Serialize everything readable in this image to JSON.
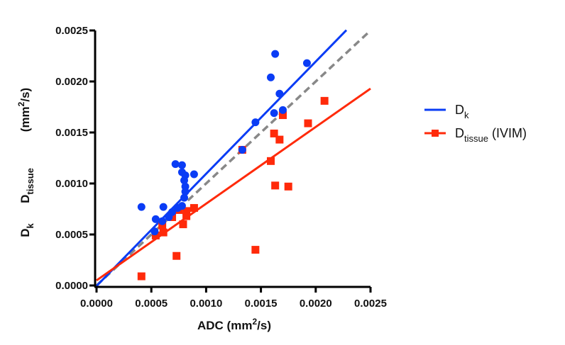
{
  "chart_data": {
    "type": "scatter",
    "xlabel": {
      "main": "ADC (mm",
      "sup": "2",
      "tail": "/s)"
    },
    "ylabel": {
      "dk": {
        "main": "D",
        "sub": "k"
      },
      "dtissue": {
        "main": "D",
        "sub": "tissue"
      },
      "unit": {
        "main": "(mm",
        "sup": "2",
        "tail": "/s)"
      }
    },
    "xlim": [
      0,
      0.0025
    ],
    "ylim": [
      0,
      0.0025
    ],
    "xticks": [
      "0.0000",
      "0.0005",
      "0.0010",
      "0.0015",
      "0.0020",
      "0.0025"
    ],
    "yticks": [
      "0.0000",
      "0.0005",
      "0.0010",
      "0.0015",
      "0.0020",
      "0.0025"
    ],
    "xtick_values": [
      0,
      0.0005,
      0.001,
      0.0015,
      0.002,
      0.0025
    ],
    "ytick_values": [
      0,
      0.0005,
      0.001,
      0.0015,
      0.002,
      0.0025
    ],
    "grid": false,
    "legend_position": "right",
    "identity_line": {
      "color": "#888888",
      "style": "dashed",
      "slope": 1,
      "intercept": 0
    },
    "series": [
      {
        "name": "D",
        "name_sub": "k",
        "name_tail": "",
        "marker": "circle",
        "color": "#0a3cf5",
        "fit": {
          "slope": 1.1,
          "intercept": -5e-06,
          "x_end": 0.00228
        },
        "points": [
          [
            0.00041,
            0.00077
          ],
          [
            0.00072,
            0.00119
          ],
          [
            0.00078,
            0.00118
          ],
          [
            0.00078,
            0.00111
          ],
          [
            0.00081,
            0.00108
          ],
          [
            0.00089,
            0.00109
          ],
          [
            0.0008,
            0.00103
          ],
          [
            0.00081,
            0.00097
          ],
          [
            0.00081,
            0.00092
          ],
          [
            0.0008,
            0.00086
          ],
          [
            0.00078,
            0.00078
          ],
          [
            0.00074,
            0.00076
          ],
          [
            0.00069,
            0.00072
          ],
          [
            0.00066,
            0.00067
          ],
          [
            0.00061,
            0.00077
          ],
          [
            0.0006,
            0.00063
          ],
          [
            0.00054,
            0.00065
          ],
          [
            0.00053,
            0.00053
          ],
          [
            0.00163,
            0.00227
          ],
          [
            0.00192,
            0.00218
          ],
          [
            0.00159,
            0.00204
          ],
          [
            0.00167,
            0.00188
          ],
          [
            0.0017,
            0.00172
          ],
          [
            0.00162,
            0.00169
          ],
          [
            0.00145,
            0.0016
          ],
          [
            0.00133,
            0.00133
          ]
        ]
      },
      {
        "name": "D",
        "name_sub": "tissue",
        "name_tail": " (IVIM)",
        "marker": "square",
        "color": "#ff2a0a",
        "fit": {
          "slope": 0.752,
          "intercept": 5e-05,
          "x_end": 0.0025
        },
        "points": [
          [
            0.00041,
            9e-05
          ],
          [
            0.00073,
            0.00029
          ],
          [
            0.00054,
            0.00049
          ],
          [
            0.0006,
            0.00059
          ],
          [
            0.00061,
            0.00052
          ],
          [
            0.00069,
            0.00067
          ],
          [
            0.00075,
            0.00074
          ],
          [
            0.00079,
            0.0006
          ],
          [
            0.00082,
            0.00073
          ],
          [
            0.00082,
            0.00068
          ],
          [
            0.00089,
            0.00076
          ],
          [
            0.00208,
            0.00181
          ],
          [
            0.00193,
            0.00159
          ],
          [
            0.0017,
            0.00167
          ],
          [
            0.00162,
            0.00149
          ],
          [
            0.00167,
            0.00143
          ],
          [
            0.00159,
            0.00122
          ],
          [
            0.00163,
            0.00098
          ],
          [
            0.00175,
            0.00097
          ],
          [
            0.00145,
            0.00035
          ],
          [
            0.00133,
            0.00133
          ]
        ]
      }
    ]
  }
}
